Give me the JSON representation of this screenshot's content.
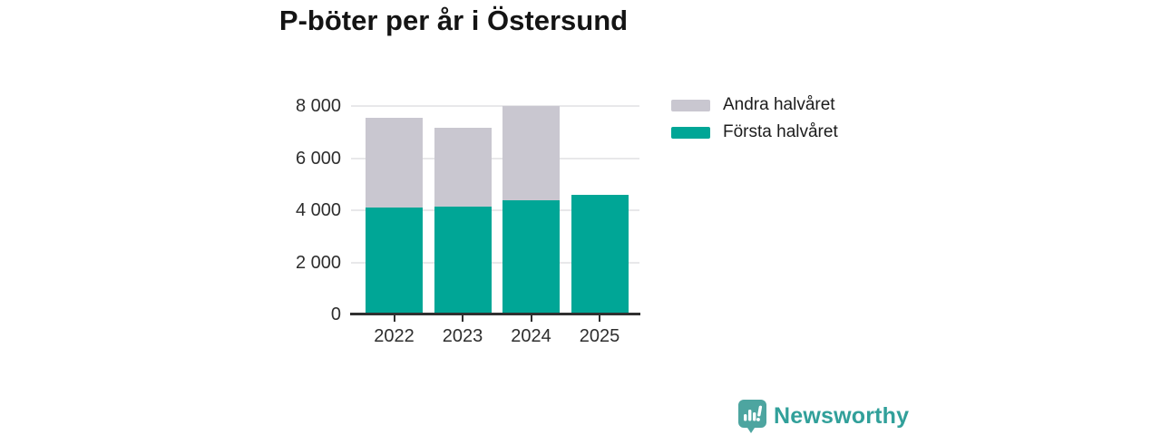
{
  "title": "P-böter per år i Östersund",
  "colors": {
    "first_half": "#00a696",
    "second_half": "#c9c7d0",
    "grid": "#e8e8ea",
    "axis": "#303030",
    "tick_text": "#2e2e2e",
    "title_text": "#141414",
    "logo_icon": "#4da5a0",
    "logo_text": "#31a09a",
    "background": "#ffffff"
  },
  "chart_data": {
    "type": "bar",
    "stacked": true,
    "title": "P-böter per år i Östersund",
    "xlabel": "",
    "ylabel": "",
    "categories": [
      "2022",
      "2023",
      "2024",
      "2025"
    ],
    "series": [
      {
        "name": "Första halvåret",
        "color": "#00a696",
        "values": [
          4100,
          4150,
          4400,
          4600
        ]
      },
      {
        "name": "Andra halvåret",
        "color": "#c9c7d0",
        "values": [
          3450,
          3000,
          3600,
          0
        ]
      }
    ],
    "totals": [
      7550,
      7150,
      8000,
      4600
    ],
    "ylim": [
      0,
      8400
    ],
    "yticks": [
      0,
      2000,
      4000,
      6000,
      8000
    ],
    "ytick_labels": [
      "0",
      "2 000",
      "4 000",
      "6 000",
      "8 000"
    ],
    "grid": "horizontal",
    "legend_position": "right"
  },
  "legend": {
    "items": [
      {
        "label": "Andra halvåret",
        "color": "#c9c7d0"
      },
      {
        "label": "Första halvåret",
        "color": "#00a696"
      }
    ]
  },
  "branding": {
    "logo_text": "Newsworthy",
    "logo_icon": "bar-chart-speech-bubble-icon"
  }
}
